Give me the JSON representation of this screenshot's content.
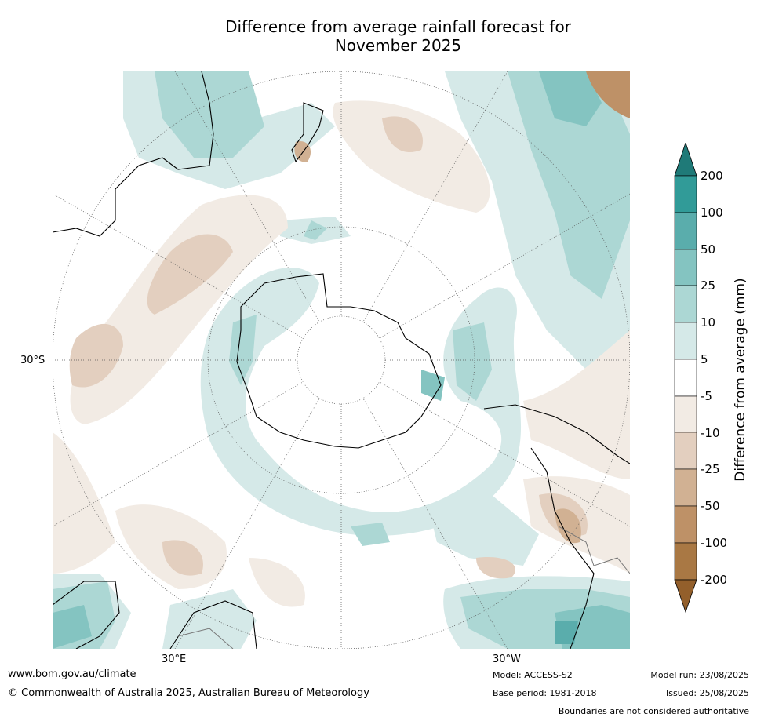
{
  "title_line1": "Difference from average rainfall forecast for",
  "title_line2": "November 2025",
  "map": {
    "lat_label": "30°S",
    "lon_label_east": "30°E",
    "lon_label_west": "30°W",
    "colors": {
      "gt200": "#1f7a78",
      "100_200": "#319b98",
      "50_100": "#5aadac",
      "25_50": "#84c4c1",
      "10_25": "#acd7d4",
      "5_10": "#d5e9e8",
      "-5_5": "#ffffff",
      "-10_-5": "#f2ebe4",
      "-25_-10": "#e3cfbf",
      "-50_-25": "#d1b193",
      "-100_-50": "#be9167",
      "-200_-100": "#a97844",
      "lt-200": "#935f2b"
    }
  },
  "colorbar": {
    "title": "Difference from average (mm)",
    "ticks": [
      "200",
      "100",
      "50",
      "25",
      "10",
      "5",
      "-5",
      "-10",
      "-25",
      "-50",
      "-100",
      "-200"
    ]
  },
  "footer": {
    "website": "www.bom.gov.au/climate",
    "copyright": "© Commonwealth of Australia 2025, Australian Bureau of Meteorology",
    "model": "Model: ACCESS-S2",
    "base_period": "Base period: 1981-2018",
    "model_run": "Model run: 23/08/2025",
    "issued": "Issued: 25/08/2025",
    "disclaimer": "Boundaries are not considered authoritative"
  }
}
